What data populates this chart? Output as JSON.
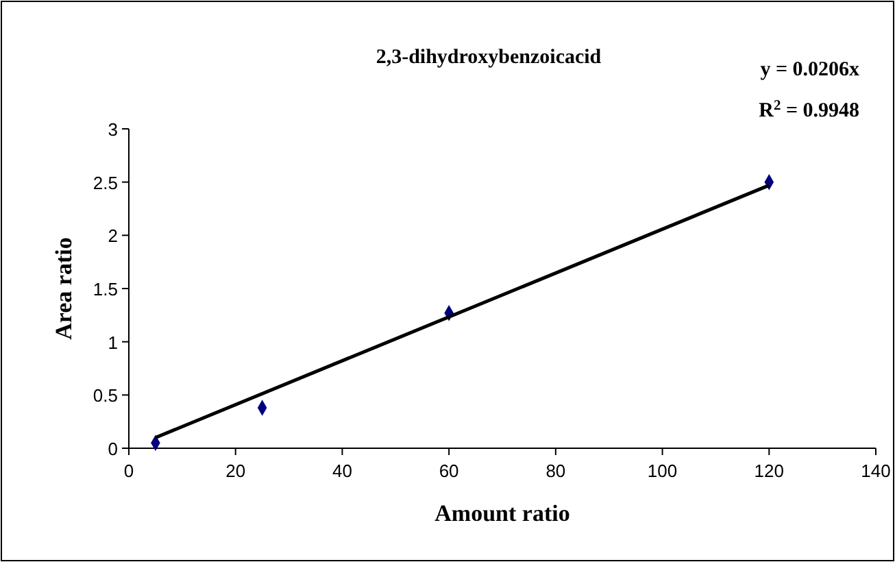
{
  "chart_data": {
    "type": "scatter",
    "title": "2,3-dihydroxybenzoicacid",
    "xlabel": "Amount ratio",
    "ylabel": "Area ratio",
    "annotations": [
      "y = 0.0206x",
      "R$^{2}$ = 0.9948"
    ],
    "xlim": [
      0,
      140
    ],
    "xticks": [
      0,
      20,
      40,
      60,
      80,
      100,
      120,
      140
    ],
    "ylim": [
      0,
      3
    ],
    "yticks": [
      0,
      0.5,
      1,
      1.5,
      2,
      2.5,
      3
    ],
    "grid": false,
    "series": [
      {
        "color": "#000080",
        "marker": "diamond",
        "x": [
          5,
          25,
          60,
          120
        ],
        "values": [
          0.05,
          0.38,
          1.27,
          2.5
        ]
      },
      {
        "type": "line",
        "color": "#000000",
        "marker": "none",
        "line_style": "solid",
        "x": [
          5,
          120
        ],
        "values": [
          0.1,
          2.47
        ]
      }
    ]
  }
}
